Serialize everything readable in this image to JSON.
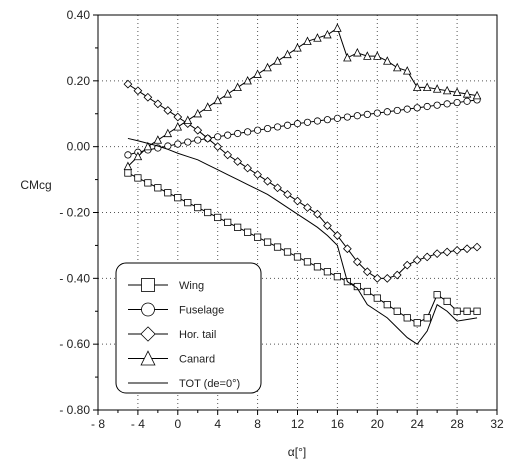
{
  "chart_data": {
    "type": "line",
    "xlabel": "α[°]",
    "ylabel": "CMcg",
    "xlim": [
      -8,
      32
    ],
    "ylim": [
      -0.8,
      0.4
    ],
    "x_ticks": [
      -8,
      -4,
      0,
      4,
      8,
      12,
      16,
      20,
      24,
      28,
      32
    ],
    "x_tick_labels": [
      "- 8",
      "- 4",
      "0",
      "4",
      "8",
      "12",
      "16",
      "20",
      "24",
      "28",
      "32"
    ],
    "y_ticks": [
      -0.8,
      -0.6,
      -0.4,
      -0.2,
      0.0,
      0.2,
      0.4
    ],
    "y_tick_labels": [
      "- 0.80",
      "- 0.60",
      "- 0.40",
      "- 0.20",
      "0.00",
      "0.20",
      "0.40"
    ],
    "grid": true,
    "legend_position": "bottom-left",
    "series": [
      {
        "name": "Wing",
        "marker": "square",
        "x": [
          -5,
          -4,
          -3,
          -2,
          -1,
          0,
          1,
          2,
          3,
          4,
          5,
          6,
          7,
          8,
          9,
          10,
          11,
          12,
          13,
          14,
          15,
          16,
          17,
          18,
          19,
          20,
          21,
          22,
          23,
          24,
          25,
          26,
          27,
          28,
          29,
          30
        ],
        "y": [
          -0.08,
          -0.095,
          -0.11,
          -0.125,
          -0.14,
          -0.155,
          -0.17,
          -0.185,
          -0.2,
          -0.215,
          -0.23,
          -0.245,
          -0.26,
          -0.275,
          -0.29,
          -0.305,
          -0.32,
          -0.335,
          -0.35,
          -0.365,
          -0.38,
          -0.395,
          -0.41,
          -0.425,
          -0.44,
          -0.46,
          -0.48,
          -0.5,
          -0.52,
          -0.535,
          -0.52,
          -0.45,
          -0.47,
          -0.5,
          -0.5,
          -0.5
        ]
      },
      {
        "name": "Fuselage",
        "marker": "circle",
        "x": [
          -5,
          -4,
          -3,
          -2,
          -1,
          0,
          1,
          2,
          3,
          4,
          5,
          6,
          7,
          8,
          9,
          10,
          11,
          12,
          13,
          14,
          15,
          16,
          17,
          18,
          19,
          20,
          21,
          22,
          23,
          24,
          25,
          26,
          27,
          28,
          29,
          30
        ],
        "y": [
          -0.025,
          -0.017,
          -0.01,
          -0.004,
          0.002,
          0.008,
          0.014,
          0.02,
          0.025,
          0.03,
          0.035,
          0.04,
          0.045,
          0.05,
          0.055,
          0.06,
          0.065,
          0.07,
          0.074,
          0.078,
          0.082,
          0.086,
          0.09,
          0.094,
          0.098,
          0.102,
          0.106,
          0.11,
          0.114,
          0.118,
          0.122,
          0.126,
          0.13,
          0.134,
          0.138,
          0.142
        ]
      },
      {
        "name": "Hor. tail",
        "marker": "diamond",
        "x": [
          -5,
          -4,
          -3,
          -2,
          -1,
          0,
          1,
          2,
          3,
          4,
          5,
          6,
          7,
          8,
          9,
          10,
          11,
          12,
          13,
          14,
          15,
          16,
          17,
          18,
          19,
          20,
          21,
          22,
          23,
          24,
          25,
          26,
          27,
          28,
          29,
          30
        ],
        "y": [
          0.19,
          0.17,
          0.15,
          0.13,
          0.11,
          0.09,
          0.07,
          0.05,
          0.025,
          0.0,
          -0.025,
          -0.045,
          -0.065,
          -0.085,
          -0.105,
          -0.125,
          -0.145,
          -0.165,
          -0.185,
          -0.205,
          -0.24,
          -0.27,
          -0.31,
          -0.35,
          -0.38,
          -0.4,
          -0.4,
          -0.39,
          -0.36,
          -0.345,
          -0.335,
          -0.325,
          -0.32,
          -0.315,
          -0.31,
          -0.305
        ]
      },
      {
        "name": "Canard",
        "marker": "triangle",
        "x": [
          -5,
          -4,
          -3,
          -2,
          -1,
          0,
          1,
          2,
          3,
          4,
          5,
          6,
          7,
          8,
          9,
          10,
          11,
          12,
          13,
          14,
          15,
          16,
          17,
          18,
          19,
          20,
          21,
          22,
          23,
          24,
          25,
          26,
          27,
          28,
          29,
          30
        ],
        "y": [
          -0.06,
          -0.03,
          0.0,
          0.02,
          0.04,
          0.06,
          0.08,
          0.1,
          0.12,
          0.14,
          0.16,
          0.18,
          0.2,
          0.22,
          0.24,
          0.26,
          0.28,
          0.3,
          0.32,
          0.33,
          0.34,
          0.36,
          0.27,
          0.285,
          0.275,
          0.275,
          0.26,
          0.24,
          0.23,
          0.18,
          0.18,
          0.175,
          0.17,
          0.165,
          0.16,
          0.155
        ]
      },
      {
        "name": "TOT (de=0°)",
        "marker": "none",
        "x": [
          -5,
          -4,
          -3,
          -2,
          -1,
          0,
          1,
          2,
          3,
          4,
          5,
          6,
          7,
          8,
          9,
          10,
          11,
          12,
          13,
          14,
          15,
          16,
          17,
          18,
          19,
          20,
          21,
          22,
          23,
          24,
          25,
          26,
          27,
          28,
          29,
          30
        ],
        "y": [
          0.025,
          0.018,
          0.01,
          0.002,
          -0.008,
          -0.02,
          -0.03,
          -0.04,
          -0.055,
          -0.07,
          -0.085,
          -0.1,
          -0.115,
          -0.13,
          -0.145,
          -0.165,
          -0.185,
          -0.205,
          -0.225,
          -0.245,
          -0.27,
          -0.3,
          -0.41,
          -0.43,
          -0.48,
          -0.5,
          -0.52,
          -0.55,
          -0.58,
          -0.6,
          -0.56,
          -0.48,
          -0.5,
          -0.53,
          -0.525,
          -0.52
        ]
      }
    ]
  }
}
